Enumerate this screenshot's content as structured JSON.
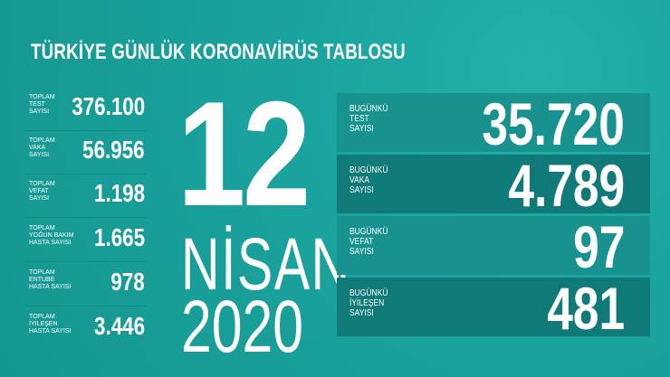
{
  "title": "TÜRKİYE GÜNLÜK KORONAVİRÜS TABLOSU",
  "colors": {
    "background": "#1aa39e",
    "panel_light": "#17928f",
    "panel_dark": "#0f7a77"
  },
  "totals": [
    {
      "label": "TOPLAM\nTEST\nSAYISI",
      "value": "376.100"
    },
    {
      "label": "TOPLAM\nVAKA\nSAYISI",
      "value": "56.956"
    },
    {
      "label": "TOPLAM\nVEFAT\nSAYISI",
      "value": "1.198"
    },
    {
      "label": "TOPLAM\nYOĞUN BAKIM\nHASTA SAYISI",
      "value": "1.665"
    },
    {
      "label": "TOPLAM\nENTUBE\nHASTA SAYISI",
      "value": "978"
    },
    {
      "label": "TOPLAM\nİYİLEŞEN\nHASTA SAYISI",
      "value": "3.446"
    }
  ],
  "date": {
    "day": "12",
    "month": "NİSAN",
    "year": "2020"
  },
  "today": [
    {
      "label": "BUGÜNKÜ\nTEST\nSAYISI",
      "value": "35.720"
    },
    {
      "label": "BUGÜNKÜ\nVAKA\nSAYISI",
      "value": "4.789"
    },
    {
      "label": "BUGÜNKÜ\nVEFAT\nSAYISI",
      "value": "97"
    },
    {
      "label": "BUGÜNKÜ\nİYİLEŞEN\nSAYISI",
      "value": "481"
    }
  ]
}
